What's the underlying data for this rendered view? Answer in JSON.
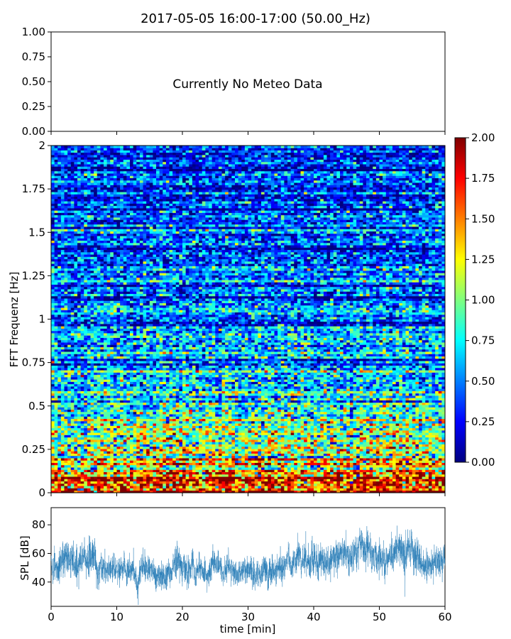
{
  "figure": {
    "title": "2017-05-05 16:00-17:00 (50.00_Hz)"
  },
  "chart_data": [
    {
      "id": "meteo",
      "type": "line",
      "message": "Currently No Meteo Data",
      "ylim": [
        0,
        1
      ],
      "y_ticks": [
        "0.00",
        "0.25",
        "0.50",
        "0.75",
        "1.00"
      ],
      "x_ticks_count": 7
    },
    {
      "id": "spectrogram",
      "type": "heatmap",
      "ylabel": "FFT Frequenz [Hz]",
      "ylim": [
        0,
        2
      ],
      "xlim": [
        0,
        60
      ],
      "y_ticks": [
        "0",
        "0.25",
        "0.5",
        "0.75",
        "1",
        "1.25",
        "1.5",
        "1.75",
        "2"
      ],
      "colormap": "jet",
      "n_time_bins": 120,
      "n_freq_bins": 150,
      "value_profile_by_frequency": {
        "frequency": [
          0,
          0.05,
          0.1,
          0.25,
          0.5,
          0.75,
          1.0,
          1.5,
          2.0
        ],
        "typical_value": [
          1.9,
          1.7,
          1.55,
          1.15,
          0.78,
          0.62,
          0.5,
          0.4,
          0.3
        ]
      },
      "colorbar": {
        "vmin": 0,
        "vmax": 2,
        "ticks": [
          "0.00",
          "0.25",
          "0.50",
          "0.75",
          "1.00",
          "1.25",
          "1.50",
          "1.75",
          "2.00"
        ],
        "colors": [
          "#00007f",
          "#0000ff",
          "#007fff",
          "#00ffff",
          "#7fff7f",
          "#ffff00",
          "#ff7f00",
          "#ff0000",
          "#7f0000"
        ]
      }
    },
    {
      "id": "spl",
      "type": "line",
      "ylabel": "SPL [dB]",
      "xlabel": "time [min]",
      "xlim": [
        0,
        60
      ],
      "ylim": [
        23,
        92
      ],
      "x_ticks": [
        "0",
        "10",
        "20",
        "30",
        "40",
        "50",
        "60"
      ],
      "y_ticks": [
        "40",
        "60",
        "80"
      ],
      "line_color": "#1f77b4",
      "n_samples": 3600,
      "envelope": {
        "time": [
          0,
          1,
          2,
          4,
          6,
          8,
          10,
          12,
          14,
          16,
          18,
          19,
          20,
          22,
          24,
          26,
          28,
          30,
          32,
          34,
          36,
          38,
          40,
          42,
          44,
          46,
          47,
          48,
          50,
          52,
          54,
          55,
          56,
          58,
          60
        ],
        "mean": [
          48,
          50,
          56,
          54,
          55,
          50,
          47,
          47,
          48,
          47,
          48,
          53,
          52,
          50,
          48,
          46,
          46,
          48,
          50,
          49,
          51,
          55,
          53,
          56,
          55,
          62,
          64,
          58,
          57,
          54,
          58,
          62,
          55,
          53,
          52
        ],
        "spread": [
          8,
          9,
          11,
          10,
          11,
          9,
          8,
          9,
          9,
          8,
          8,
          10,
          10,
          9,
          9,
          8,
          8,
          9,
          9,
          9,
          9,
          10,
          10,
          10,
          10,
          12,
          13,
          11,
          10,
          10,
          11,
          12,
          10,
          10,
          9
        ]
      }
    }
  ]
}
